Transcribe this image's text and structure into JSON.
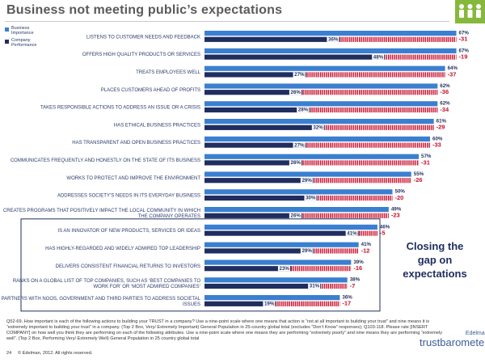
{
  "header": {
    "title": "Business not meeting public’s expectations",
    "logo_icon": "people-group-icon",
    "logo_color": "#86b83b"
  },
  "legend": {
    "items": [
      {
        "label": "Business Importance",
        "color": "#3a7fd0"
      },
      {
        "label": "Company Performance",
        "color": "#1f2d5f"
      }
    ]
  },
  "callout": {
    "text": "Closing the gap on expectations"
  },
  "footnote": {
    "text": "Q52-69. How important is each of the following actions to building your TRUST in a company? Use a nine-point scale where one means that action is “not at all important to building your trust” and nine means it is “extremely important to building your trust” in a company. (Top 2 Box, Very/ Extremely Important) General Population in 25-country global total (excludes “Don’t Know” responses); Q103-118. Please rate [INSERT COMPANY] on how well you think they are performing on each of the following attributes. Use a nine-point scale where one means they are performing “extremely poorly” and nine means they are performing “extremely well”. (Top 2 Box, Performing Very/ Extremely Well) General Population in 25 country global total"
  },
  "footer": {
    "page": "24",
    "copyright": "© Edelman, 2012. All rights reserved.",
    "brand_small": "Edelman",
    "brand_big": "trustbarometer"
  },
  "chart_data": {
    "type": "bar",
    "orientation": "horizontal",
    "categories": [
      "LISTENS TO CUSTOMER NEEDS AND FEEDBACK",
      "OFFERS HIGH QUALITY PRODUCTS OR SERVICES",
      "TREATS EMPLOYEES WELL",
      "PLACES CUSTOMERS AHEAD OF PROFITS",
      "TAKES RESPONSIBLE ACTIONS TO ADDRESS AN ISSUE OR A CRISIS",
      "HAS ETHICAL BUSINESS PRACTICES",
      "HAS TRANSPARENT AND OPEN BUSINESS PRACTICES",
      "COMMUNICATES FREQUENTLY AND HONESTLY ON THE STATE OF ITS BUSINESS",
      "WORKS TO PROTECT AND IMPROVE THE ENVIRONMENT",
      "ADDRESSES SOCIETY’S NEEDS IN ITS EVERYDAY BUSINESS",
      "CREATES PROGRAMS THAT POSITIVELY IMPACT THE LOCAL COMMUNITY IN WHICH THE COMPANY OPERATES",
      "IS AN INNOVATOR OF NEW PRODUCTS, SERVICES OR IDEAS",
      "HAS HIGHLY-REGARDED AND WIDELY ADMIRED TOP LEADERSHIP",
      "DELIVERS CONSISTENT FINANCIAL RETURNS TO INVESTORS",
      "RANKS ON A GLOBAL LIST OF TOP COMPANIES, SUCH AS ‘BEST COMPANIES TO WORK FOR’ OR ‘MOST ADMIRED COMPANIES’",
      "PARTNERS WITH NGOS, GOVERNMENT AND THIRD PARTIES TO ADDRESS SOCIETAL ISSUES"
    ],
    "series": [
      {
        "name": "Business Importance",
        "color": "#3a7fd0",
        "values": [
          67,
          67,
          64,
          62,
          62,
          61,
          60,
          57,
          55,
          50,
          49,
          46,
          41,
          39,
          38,
          36
        ],
        "labels": [
          "67%",
          "67%",
          "64%",
          "62%",
          "62%",
          "61%",
          "60%",
          "57%",
          "55%",
          "50%",
          "49%",
          "46%",
          "41%",
          "39%",
          "38%",
          "36%"
        ]
      },
      {
        "name": "Company Performance",
        "color": "#1f2d5f",
        "values": [
          36,
          48,
          27,
          26,
          28,
          32,
          27,
          26,
          29,
          30,
          26,
          41,
          29,
          23,
          31,
          19
        ],
        "labels": [
          "36%",
          "48%",
          "27%",
          "26%",
          "28%",
          "32%",
          "27%",
          "26%",
          "29%",
          "30%",
          "26%",
          "41%",
          "29%",
          "23%",
          "31%",
          "19%"
        ]
      }
    ],
    "gap": {
      "color": "#c8102e",
      "values": [
        -31,
        -19,
        -37,
        -36,
        -34,
        -29,
        -33,
        -31,
        -26,
        -20,
        -23,
        -5,
        -12,
        -16,
        -7,
        -17
      ],
      "labels": [
        "-31",
        "-19",
        "-37",
        "-36",
        "-34",
        "-29",
        "-33",
        "-31",
        "-26",
        "-20",
        "-23",
        "-5",
        "-12",
        "-16",
        "-7",
        "-17"
      ]
    },
    "highlighted_group": [
      11,
      15
    ],
    "xlim": [
      0,
      100
    ],
    "grid": false
  }
}
